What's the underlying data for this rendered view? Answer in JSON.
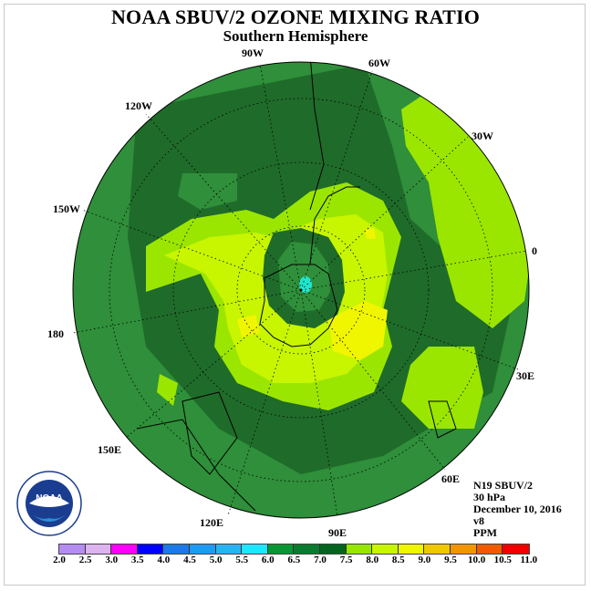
{
  "title": "NOAA SBUV/2 OZONE MIXING RATIO",
  "subtitle": "Southern Hemisphere",
  "longitude_labels": [
    "90W",
    "60W",
    "30W",
    "0",
    "30E",
    "60E",
    "90E",
    "120E",
    "150E",
    "180",
    "150W",
    "120W"
  ],
  "info": {
    "instrument": "N19 SBUV/2",
    "level": "30 hPa",
    "date": "December 10, 2016",
    "version": "v8",
    "units": "PPM"
  },
  "logo_text": "NOAA",
  "colorbar": {
    "ticks": [
      "2.0",
      "2.5",
      "3.0",
      "3.5",
      "4.0",
      "4.5",
      "5.0",
      "5.5",
      "6.0",
      "6.5",
      "7.0",
      "7.5",
      "8.0",
      "8.5",
      "9.0",
      "9.5",
      "10.0",
      "10.5",
      "11.0"
    ],
    "colors": [
      "#b58cf0",
      "#dcb4f0",
      "#ff00ff",
      "#0000ff",
      "#1e78e6",
      "#1e9bf0",
      "#28b4f0",
      "#1ee6ff",
      "#0a9632",
      "#0a7a2e",
      "#05641e",
      "#96e600",
      "#c8f500",
      "#f0f500",
      "#f0c800",
      "#f09600",
      "#f05a00",
      "#f00000",
      "#8b5a3c"
    ]
  }
}
